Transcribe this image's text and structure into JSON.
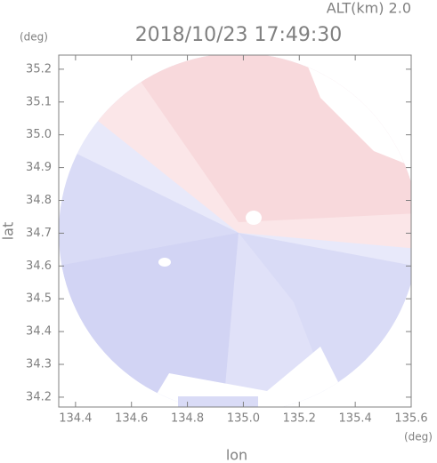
{
  "chart_data": {
    "type": "map",
    "title": "2018/10/23 17:49:30",
    "subtitle": "ALT(km) 2.0",
    "x_label": "lon",
    "y_label": "lat",
    "x_unit": "(deg)",
    "y_unit": "(deg)",
    "xlim": [
      134.34,
      135.6
    ],
    "xticks": [
      134.4,
      134.6,
      134.8,
      {
        "value": 135,
        "label": "135.0"
      },
      135.2,
      135.4,
      135.6
    ],
    "ylim": [
      34.17,
      35.243
    ],
    "yticks": [
      34.2,
      34.3,
      34.4,
      34.5,
      34.6,
      34.7,
      34.8,
      34.9,
      {
        "value": 35,
        "label": "35.0"
      },
      35.1,
      35.2
    ]
  }
}
